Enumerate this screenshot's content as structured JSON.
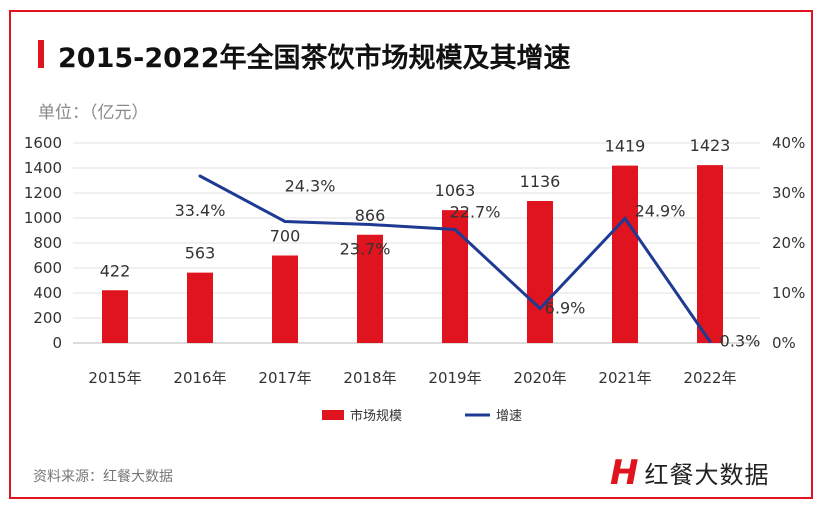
{
  "title": "2015-2022年全国茶饮市场规模及其增速",
  "unit": "单位：（亿元）",
  "source": "资料来源：红餐大数据",
  "logo_text": "红餐大数据",
  "colors": {
    "bar": "#e0141e",
    "line": "#1f3a93",
    "frame": "#e0141e"
  },
  "chart_data": {
    "type": "bar",
    "categories": [
      "2015年",
      "2016年",
      "2017年",
      "2018年",
      "2019年",
      "2020年",
      "2021年",
      "2022年"
    ],
    "series": [
      {
        "name": "市场规模",
        "type": "bar",
        "axis": "left",
        "values": [
          422,
          563,
          700,
          866,
          1063,
          1136,
          1419,
          1423
        ],
        "labels": [
          "422",
          "563",
          "700",
          "866",
          "1063",
          "1136",
          "1419",
          "1423"
        ]
      },
      {
        "name": "增速",
        "type": "line",
        "axis": "right",
        "values": [
          null,
          33.4,
          24.3,
          23.7,
          22.7,
          6.9,
          24.9,
          0.3
        ],
        "labels": [
          "",
          "33.4%",
          "24.3%",
          "23.7%",
          "22.7%",
          "6.9%",
          "24.9%",
          "0.3%"
        ]
      }
    ],
    "y_left": {
      "ylim": [
        0,
        1600
      ],
      "ticks": [
        "0",
        "200",
        "400",
        "600",
        "800",
        "1000",
        "1200",
        "1400",
        "1600"
      ]
    },
    "y_right": {
      "ylim": [
        0,
        40
      ],
      "ticks": [
        "0%",
        "10%",
        "20%",
        "30%",
        "40%"
      ]
    },
    "grid": true,
    "legend": "bottom"
  }
}
